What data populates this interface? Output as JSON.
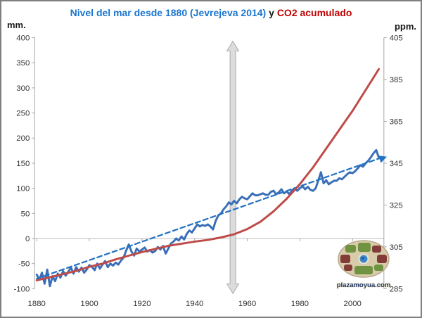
{
  "chart_data": {
    "type": "line",
    "title_parts": [
      {
        "text": "Nivel del mar desde 1880 (Jevrejeva 2014)",
        "color": "#1b75ce"
      },
      {
        "text": " y ",
        "color": "#1a1a1a"
      },
      {
        "text": "CO2 acumulado",
        "color": "#c00000"
      }
    ],
    "left_axis": {
      "unit": "mm.",
      "min": -100,
      "max": 400,
      "ticks": [
        400,
        350,
        300,
        250,
        200,
        150,
        100,
        50,
        0,
        -50,
        -100
      ]
    },
    "right_axis": {
      "unit": "ppm.",
      "min": 285,
      "max": 405,
      "ticks": [
        405,
        385,
        365,
        345,
        325,
        305,
        285
      ]
    },
    "x_axis": {
      "min": 1880,
      "max": 2012,
      "ticks": [
        1880,
        1900,
        1920,
        1940,
        1960,
        1980,
        2000
      ]
    },
    "grid": {
      "zero_line_only": true
    },
    "legend": "none",
    "series": [
      {
        "name": "Nivel del mar (Jevrejeva 2014)",
        "axis": "left",
        "style": "solid",
        "color": "#3a6fb7",
        "width": 3,
        "start_year": 1880,
        "step": 1,
        "values": [
          -72,
          -82,
          -68,
          -90,
          -62,
          -95,
          -75,
          -85,
          -70,
          -78,
          -65,
          -74,
          -66,
          -58,
          -70,
          -57,
          -66,
          -58,
          -68,
          -62,
          -53,
          -57,
          -63,
          -50,
          -60,
          -52,
          -45,
          -57,
          -50,
          -54,
          -48,
          -52,
          -44,
          -38,
          -24,
          -12,
          -26,
          -34,
          -20,
          -26,
          -22,
          -18,
          -26,
          -23,
          -28,
          -25,
          -17,
          -22,
          -15,
          -30,
          -20,
          -10,
          -6,
          0,
          -4,
          4,
          -2,
          9,
          16,
          12,
          20,
          28,
          24,
          27,
          25,
          28,
          24,
          18,
          35,
          46,
          50,
          58,
          64,
          72,
          68,
          75,
          70,
          78,
          83,
          80,
          78,
          84,
          90,
          86,
          86,
          88,
          90,
          87,
          87,
          93,
          95,
          88,
          92,
          98,
          90,
          94,
          88,
          96,
          100,
          95,
          100,
          104,
          98,
          103,
          97,
          95,
          100,
          115,
          132,
          110,
          116,
          108,
          112,
          115,
          115,
          120,
          118,
          123,
          128,
          132,
          130,
          134,
          140,
          146,
          143,
          150,
          155,
          162,
          170,
          176,
          161
        ]
      },
      {
        "name": "Tendencia lineal del nivel del mar",
        "axis": "left",
        "style": "dashed",
        "color": "#2272c3",
        "width": 2.25,
        "arrow_end": true,
        "years": [
          1880,
          2011.5
        ],
        "values": [
          -80,
          162
        ]
      },
      {
        "name": "CO2 acumulado",
        "axis": "right",
        "style": "solid",
        "color": "#be4b48",
        "width": 3,
        "start_year": 1880,
        "step": 5,
        "values": [
          289,
          290.5,
          292,
          293.5,
          295.5,
          297,
          299,
          300.8,
          302.5,
          304,
          305.5,
          306.5,
          307.5,
          308.3,
          309.5,
          311,
          313.5,
          317,
          322,
          328,
          335,
          343,
          352,
          361,
          370,
          380,
          390
        ]
      }
    ],
    "annotation": {
      "type": "vertical-double-arrow",
      "year": 1954,
      "fill": "#dcdcdc",
      "stroke": "#ababab"
    },
    "watermark": {
      "text": "plazamoyua.com",
      "text_color": "#1f3864",
      "colors": {
        "base": "#d8cbaa",
        "base_edge": "#b9a88a",
        "green": "#6a8f3c",
        "maroon": "#7e3330",
        "center_ring": "#e8e4d8",
        "center_blue": "#3d85c8",
        "center_dark": "#1f5fa0"
      }
    },
    "style": {
      "axis_line": "#a6a6a6",
      "tick": "#a6a6a6",
      "grid_line": "#c9c9c9",
      "label_color": "#333333"
    }
  }
}
